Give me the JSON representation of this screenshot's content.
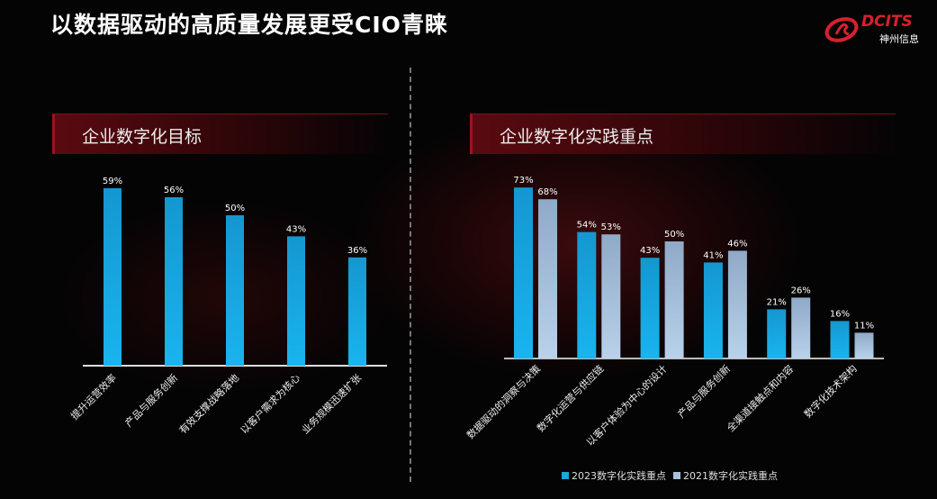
{
  "title": "以数据驱动的高质量发展更受CIO青睐",
  "logo": {
    "en": "DCITS",
    "cn": "神州信息"
  },
  "colors": {
    "series2023": "#1aa6e0",
    "series2021": "#a9c3de",
    "banner": "#5a0a10",
    "brand": "#d8202b"
  },
  "chart_data": [
    {
      "type": "bar",
      "title": "企业数字化目标",
      "categories": [
        "提升运营效率",
        "产品与服务创新",
        "有效支撑战略落地",
        "以客户需求为核心",
        "业务规模迅速扩张"
      ],
      "values": [
        59,
        56,
        50,
        43,
        36
      ],
      "data_labels": [
        "59%",
        "56%",
        "50%",
        "43%",
        "36%"
      ],
      "ylim": [
        0,
        100
      ],
      "grid": false
    },
    {
      "type": "bar",
      "title": "企业数字化实践重点",
      "categories": [
        "数据驱动的洞察与决策",
        "数字化运营与供应链",
        "以客户体验为中心的设计",
        "产品与服务创新",
        "全渠道接触点和内容",
        "数字化技术架构"
      ],
      "series": [
        {
          "name": "2023数字化实践重点",
          "values": [
            73,
            54,
            43,
            41,
            21,
            16
          ],
          "data_labels": [
            "73%",
            "54%",
            "43%",
            "41%",
            "21%",
            "16%"
          ]
        },
        {
          "name": "2021数字化实践重点",
          "values": [
            68,
            53,
            50,
            46,
            26,
            11
          ],
          "data_labels": [
            "68%",
            "53%",
            "50%",
            "46%",
            "26%",
            "11%"
          ]
        }
      ],
      "ylim": [
        0,
        100
      ],
      "grid": false,
      "legend": "bottom"
    }
  ]
}
